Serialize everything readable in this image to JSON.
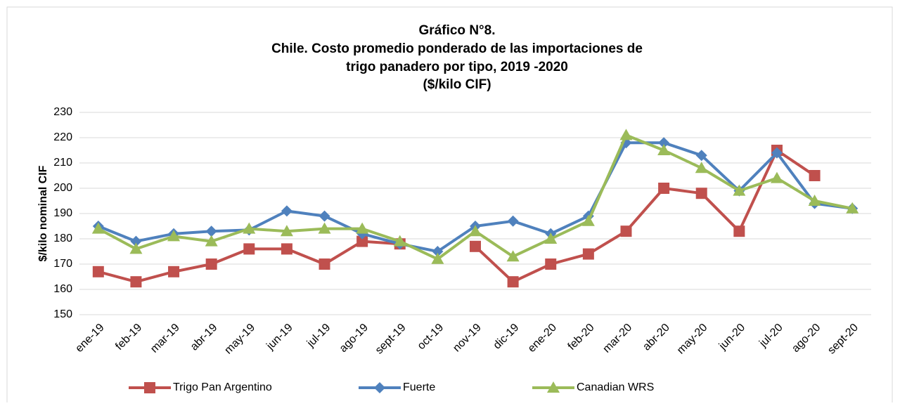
{
  "chart_data": {
    "type": "line",
    "title_lines": [
      "Gráfico N°8.",
      "Chile. Costo promedio ponderado de las importaciones de",
      "trigo panadero por tipo, 2019 -2020",
      "($/kilo CIF)"
    ],
    "y_label": "$/kilo nominal CIF",
    "categories": [
      "ene-19",
      "feb-19",
      "mar-19",
      "abr-19",
      "may-19",
      "jun-19",
      "jul-19",
      "ago-19",
      "sept-19",
      "oct-19",
      "nov-19",
      "dic-19",
      "ene-20",
      "feb-20",
      "mar-20",
      "abr-20",
      "may-20",
      "jun-20",
      "jul-20",
      "ago-20",
      "sept-20"
    ],
    "series": [
      {
        "name": "Trigo Pan Argentino",
        "color": "#c0504d",
        "marker": "square",
        "values": [
          167,
          163,
          167,
          170,
          176,
          176,
          170,
          179,
          178,
          null,
          177,
          163,
          170,
          174,
          183,
          200,
          198,
          183,
          215,
          205,
          null
        ]
      },
      {
        "name": "Fuerte",
        "color": "#4f81bd",
        "marker": "diamond",
        "values": [
          185,
          179,
          182,
          183,
          183.5,
          191,
          189,
          182,
          178,
          175,
          185,
          187,
          182,
          189,
          218,
          218,
          213,
          199,
          214,
          194,
          192
        ]
      },
      {
        "name": "Canadian WRS",
        "color": "#9bbb59",
        "marker": "triangle",
        "values": [
          184,
          176,
          181,
          179,
          184,
          183,
          184,
          184,
          179,
          172,
          183,
          173,
          180,
          187,
          221,
          215,
          208,
          199,
          204,
          195,
          192
        ]
      }
    ],
    "ylim": [
      150,
      230
    ],
    "yticks": [
      150,
      160,
      170,
      180,
      190,
      200,
      210,
      220,
      230
    ],
    "grid": true
  }
}
